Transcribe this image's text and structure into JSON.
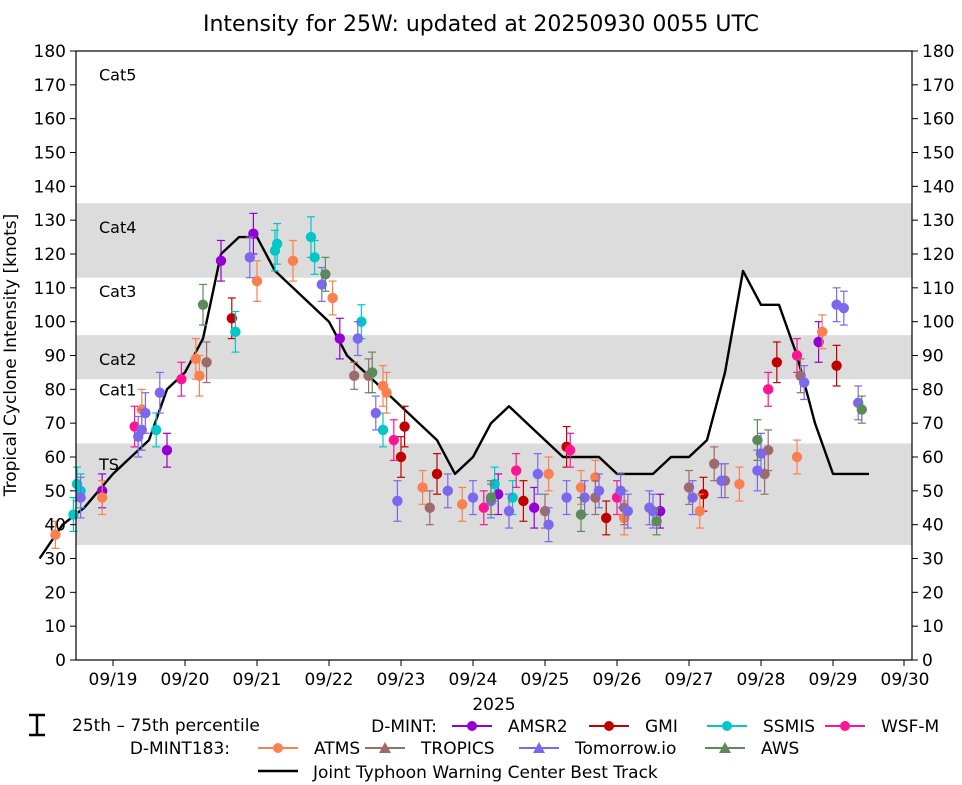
{
  "chart_data": {
    "type": "scatter",
    "title": "Intensity for 25W: updated at 20250930 0055 UTC",
    "xlabel": "2025",
    "ylabel": "Tropical Cyclone Intensity [knots]",
    "ylim": [
      0,
      180
    ],
    "yticks": [
      0,
      10,
      20,
      30,
      40,
      50,
      60,
      70,
      80,
      90,
      100,
      110,
      120,
      130,
      140,
      150,
      160,
      170,
      180
    ],
    "xlim": [
      -0.52,
      11.1
    ],
    "xticks": [
      {
        "x": 0.5,
        "label": "09/19"
      },
      {
        "x": 1.5,
        "label": "09/20"
      },
      {
        "x": 2.5,
        "label": "09/21"
      },
      {
        "x": 3.5,
        "label": "09/22"
      },
      {
        "x": 4.5,
        "label": "09/23"
      },
      {
        "x": 5.5,
        "label": "09/24"
      },
      {
        "x": 6.5,
        "label": "09/25"
      },
      {
        "x": 7.5,
        "label": "09/26"
      },
      {
        "x": 8.5,
        "label": "09/27"
      },
      {
        "x": 9.5,
        "label": "09/28"
      },
      {
        "x": 10.5,
        "label": "09/29"
      },
      {
        "x": 11.5,
        "label": "09/30"
      }
    ],
    "bands": [
      {
        "y0": 34,
        "y1": 64,
        "color": "#dcdcdc"
      },
      {
        "y0": 83,
        "y1": 96,
        "color": "#dcdcdc"
      },
      {
        "y0": 113,
        "y1": 135,
        "color": "#dcdcdc"
      }
    ],
    "category_labels": [
      {
        "label": "TS",
        "y": 58
      },
      {
        "label": "Cat1",
        "y": 80
      },
      {
        "label": "Cat2",
        "y": 89
      },
      {
        "label": "Cat3",
        "y": 109
      },
      {
        "label": "Cat4",
        "y": 128
      },
      {
        "label": "Cat5",
        "y": 173
      }
    ],
    "best_track": {
      "name": "Joint Typhoon Warning Center Best Track",
      "color": "#000000",
      "x": [
        -0.52,
        -0.2,
        0.1,
        0.3,
        0.5,
        0.75,
        1.0,
        1.25,
        1.5,
        1.75,
        2.0,
        2.25,
        2.5,
        2.75,
        3.0,
        3.25,
        3.5,
        3.75,
        4.0,
        4.25,
        4.5,
        4.75,
        5.0,
        5.25,
        5.5,
        5.75,
        6.0,
        6.25,
        6.5,
        6.75,
        7.0,
        7.25,
        7.5,
        7.75,
        8.0,
        8.25,
        8.5,
        8.75,
        9.0,
        9.25,
        9.5,
        9.75,
        10.0,
        10.25,
        10.5,
        10.75,
        11.0
      ],
      "y": [
        30,
        40,
        45,
        50,
        55,
        60,
        65,
        80,
        85,
        95,
        120,
        125,
        125,
        115,
        110,
        105,
        100,
        90,
        85,
        80,
        75,
        70,
        65,
        55,
        60,
        70,
        75,
        70,
        65,
        60,
        60,
        60,
        55,
        55,
        55,
        60,
        60,
        65,
        85,
        115,
        105,
        105,
        90,
        70,
        55,
        55,
        55
      ]
    },
    "legend": {
      "percentile_label": "25th – 75th percentile",
      "dmint_label": "D-MINT:",
      "dmint183_label": "D-MINT183:"
    },
    "series": [
      {
        "name": "AMSR2",
        "group": "D-MINT",
        "color": "#9400d3",
        "marker": "circle",
        "points": [
          [
            0.35,
            50,
            5
          ],
          [
            1.25,
            62,
            5
          ],
          [
            2.0,
            118,
            6
          ],
          [
            2.45,
            126,
            6
          ],
          [
            3.65,
            95,
            6
          ],
          [
            5.85,
            49,
            6
          ],
          [
            6.35,
            45,
            6
          ],
          [
            8.1,
            44,
            5
          ],
          [
            10.3,
            94,
            6
          ]
        ]
      },
      {
        "name": "GMI",
        "group": "D-MINT",
        "color": "#c00000",
        "marker": "circle",
        "points": [
          [
            2.15,
            101,
            6
          ],
          [
            4.5,
            60,
            6
          ],
          [
            4.55,
            69,
            6
          ],
          [
            5.0,
            55,
            6
          ],
          [
            6.2,
            47,
            6
          ],
          [
            6.8,
            63,
            6
          ],
          [
            7.35,
            42,
            5
          ],
          [
            8.7,
            49,
            5
          ],
          [
            9.72,
            88,
            6
          ],
          [
            10.55,
            87,
            6
          ]
        ]
      },
      {
        "name": "SSMIS",
        "group": "D-MINT",
        "color": "#00c8c8",
        "marker": "circle",
        "points": [
          [
            -0.05,
            43,
            5
          ],
          [
            0.0,
            52,
            5
          ],
          [
            0.05,
            50,
            5
          ],
          [
            1.1,
            68,
            5
          ],
          [
            2.2,
            97,
            6
          ],
          [
            2.75,
            121,
            6
          ],
          [
            2.78,
            123,
            6
          ],
          [
            3.25,
            125,
            6
          ],
          [
            3.3,
            119,
            5
          ],
          [
            3.95,
            100,
            5
          ],
          [
            4.25,
            68,
            5
          ],
          [
            5.8,
            52,
            5
          ],
          [
            6.05,
            48,
            5
          ]
        ]
      },
      {
        "name": "WSF-M",
        "group": "D-MINT",
        "color": "#ff1493",
        "marker": "circle",
        "points": [
          [
            0.8,
            69,
            6
          ],
          [
            1.45,
            83,
            5
          ],
          [
            4.4,
            65,
            6
          ],
          [
            5.65,
            45,
            5
          ],
          [
            6.1,
            56,
            5
          ],
          [
            6.85,
            62,
            5
          ],
          [
            7.5,
            48,
            5
          ],
          [
            9.6,
            80,
            5
          ],
          [
            10.0,
            90,
            5
          ]
        ]
      },
      {
        "name": "ATMS",
        "group": "D-MINT183",
        "color": "#fa8050",
        "marker": "circle",
        "points": [
          [
            -0.3,
            37,
            4
          ],
          [
            0.35,
            48,
            5
          ],
          [
            0.9,
            74,
            6
          ],
          [
            1.65,
            89,
            6
          ],
          [
            1.7,
            84,
            6
          ],
          [
            2.5,
            112,
            6
          ],
          [
            3.0,
            118,
            6
          ],
          [
            3.55,
            107,
            5
          ],
          [
            4.25,
            81,
            6
          ],
          [
            4.3,
            79,
            6
          ],
          [
            4.8,
            51,
            5
          ],
          [
            5.35,
            46,
            5
          ],
          [
            6.55,
            55,
            5
          ],
          [
            7.0,
            51,
            5
          ],
          [
            7.2,
            54,
            5
          ],
          [
            7.6,
            42,
            5
          ],
          [
            8.65,
            44,
            5
          ],
          [
            9.2,
            52,
            5
          ],
          [
            10.0,
            60,
            5
          ],
          [
            10.35,
            97,
            5
          ]
        ]
      },
      {
        "name": "TROPICS",
        "group": "D-MINT183",
        "color": "#9e6b6b",
        "marker": "triangle",
        "points": [
          [
            1.8,
            88,
            6
          ],
          [
            3.85,
            84,
            4
          ],
          [
            4.05,
            84,
            5
          ],
          [
            4.9,
            45,
            5
          ],
          [
            6.5,
            44,
            5
          ],
          [
            7.2,
            48,
            5
          ],
          [
            7.6,
            45,
            5
          ],
          [
            8.5,
            51,
            5
          ],
          [
            8.85,
            58,
            5
          ],
          [
            9.0,
            53,
            5
          ],
          [
            9.55,
            55,
            6
          ],
          [
            9.6,
            62,
            6
          ],
          [
            10.05,
            84,
            5
          ]
        ]
      },
      {
        "name": "Tomorrow.io",
        "group": "D-MINT183",
        "color": "#7b68ee",
        "marker": "triangle",
        "points": [
          [
            0.05,
            48,
            6
          ],
          [
            0.85,
            66,
            6
          ],
          [
            0.9,
            68,
            6
          ],
          [
            0.95,
            73,
            6
          ],
          [
            1.15,
            79,
            6
          ],
          [
            2.4,
            119,
            6
          ],
          [
            3.4,
            111,
            5
          ],
          [
            3.9,
            95,
            5
          ],
          [
            4.15,
            73,
            5
          ],
          [
            4.45,
            47,
            6
          ],
          [
            5.15,
            50,
            5
          ],
          [
            5.5,
            48,
            5
          ],
          [
            5.75,
            47,
            5
          ],
          [
            6.0,
            44,
            5
          ],
          [
            6.4,
            55,
            6
          ],
          [
            6.55,
            40,
            5
          ],
          [
            6.8,
            48,
            5
          ],
          [
            7.05,
            48,
            5
          ],
          [
            7.25,
            50,
            5
          ],
          [
            7.55,
            50,
            5
          ],
          [
            7.65,
            44,
            5
          ],
          [
            7.95,
            45,
            5
          ],
          [
            8.0,
            44,
            5
          ],
          [
            8.55,
            48,
            5
          ],
          [
            8.95,
            53,
            5
          ],
          [
            9.45,
            56,
            6
          ],
          [
            9.5,
            61,
            6
          ],
          [
            10.1,
            82,
            5
          ],
          [
            10.55,
            105,
            5
          ],
          [
            10.65,
            104,
            5
          ],
          [
            10.85,
            76,
            5
          ]
        ]
      },
      {
        "name": "AWS",
        "group": "D-MINT183",
        "color": "#5c8a5c",
        "marker": "triangle",
        "points": [
          [
            1.75,
            105,
            6
          ],
          [
            3.45,
            114,
            5
          ],
          [
            4.1,
            85,
            6
          ],
          [
            5.75,
            48,
            5
          ],
          [
            7.0,
            43,
            5
          ],
          [
            8.05,
            41,
            4
          ],
          [
            9.45,
            65,
            6
          ],
          [
            10.9,
            74,
            4
          ]
        ]
      }
    ]
  }
}
